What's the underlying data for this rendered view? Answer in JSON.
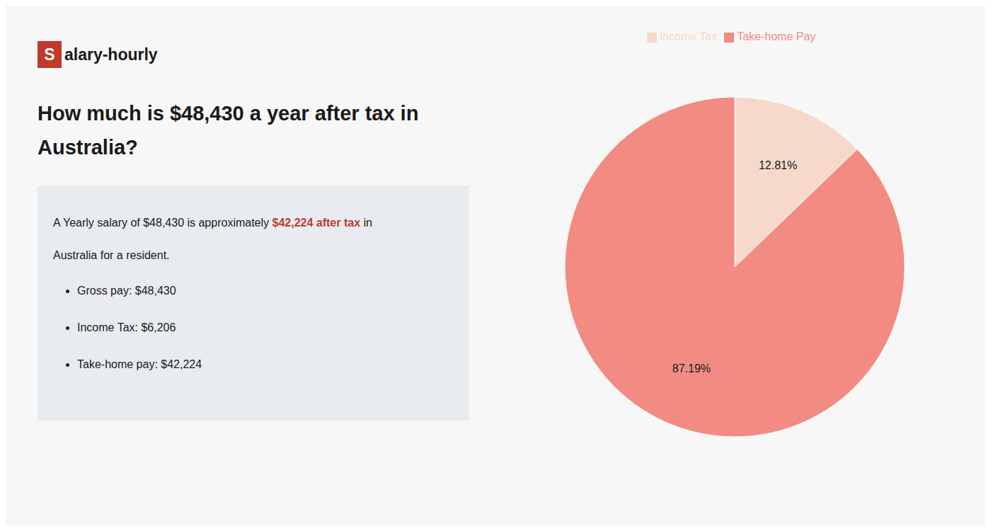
{
  "chart_data": {
    "type": "pie",
    "title": "How much is $48,430 a year after tax in Australia?",
    "annotations": [
      "S",
      "alary-hourly",
      "A Yearly salary of $48,430 is approximately ",
      "$42,224 after tax",
      " in",
      "Australia for a resident.",
      "Gross pay: $48,430",
      "Income Tax: $6,206",
      "Take-home pay: $42,224"
    ],
    "categories": [
      "Income Tax",
      "Take-home Pay"
    ],
    "values": [
      12.81,
      87.19
    ],
    "value_labels": [
      "12.81%",
      "87.19%"
    ],
    "colors": [
      "#f7d9cc",
      "#f28b82"
    ],
    "data_labels": true,
    "legend": "top"
  }
}
